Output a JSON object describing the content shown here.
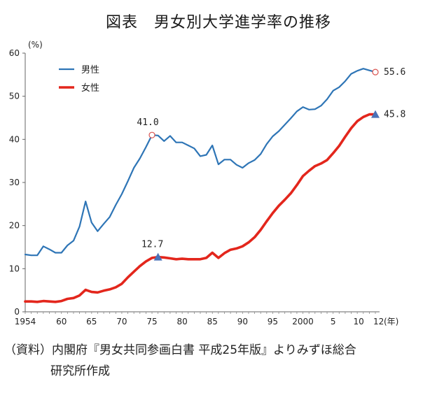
{
  "title": "図表　男女別大学進学率の推移",
  "source_line1": "（資料）内閣府『男女共同参画白書 平成25年版』よりみずほ総合",
  "source_line2": "研究所作成",
  "chart_data": {
    "type": "line",
    "ylabel": "(%)",
    "xunit": "(年)",
    "ylim": [
      0,
      60
    ],
    "yticks": [
      0,
      10,
      20,
      30,
      40,
      50,
      60
    ],
    "xlim": [
      1954,
      2012
    ],
    "xticks": [
      {
        "x": 1954,
        "label": "1954"
      },
      {
        "x": 1960,
        "label": "60"
      },
      {
        "x": 1965,
        "label": "65"
      },
      {
        "x": 1970,
        "label": "70"
      },
      {
        "x": 1975,
        "label": "75"
      },
      {
        "x": 1980,
        "label": "80"
      },
      {
        "x": 1985,
        "label": "85"
      },
      {
        "x": 1990,
        "label": "90"
      },
      {
        "x": 1995,
        "label": "95"
      },
      {
        "x": 2000,
        "label": "2000"
      },
      {
        "x": 2005,
        "label": "5"
      },
      {
        "x": 2010,
        "label": "10"
      },
      {
        "x": 2012,
        "label": "12"
      }
    ],
    "grid": false,
    "legend_position": "top-left",
    "series": [
      {
        "name": "男性",
        "color": "#2e75b6",
        "x": [
          1954,
          1955,
          1956,
          1957,
          1958,
          1959,
          1960,
          1961,
          1962,
          1963,
          1964,
          1965,
          1966,
          1967,
          1968,
          1969,
          1970,
          1971,
          1972,
          1973,
          1974,
          1975,
          1976,
          1977,
          1978,
          1979,
          1980,
          1981,
          1982,
          1983,
          1984,
          1985,
          1986,
          1987,
          1988,
          1989,
          1990,
          1991,
          1992,
          1993,
          1994,
          1995,
          1996,
          1997,
          1998,
          1999,
          2000,
          2001,
          2002,
          2003,
          2004,
          2005,
          2006,
          2007,
          2008,
          2009,
          2010,
          2011,
          2012
        ],
        "values": [
          13.3,
          13.1,
          13.1,
          15.2,
          14.5,
          13.7,
          13.7,
          15.4,
          16.5,
          19.8,
          25.6,
          20.7,
          18.7,
          20.4,
          22.0,
          24.8,
          27.3,
          30.3,
          33.4,
          35.6,
          38.2,
          41.0,
          40.9,
          39.6,
          40.8,
          39.3,
          39.3,
          38.6,
          37.9,
          36.1,
          36.4,
          38.6,
          34.2,
          35.3,
          35.3,
          34.1,
          33.4,
          34.5,
          35.2,
          36.6,
          38.9,
          40.7,
          41.9,
          43.4,
          44.9,
          46.5,
          47.5,
          46.9,
          47.0,
          47.8,
          49.3,
          51.3,
          52.1,
          53.5,
          55.2,
          55.9,
          56.4,
          56.0,
          55.6
        ],
        "endpoint_label": "55.6",
        "peak": {
          "x": 1975,
          "y": 41.0,
          "label": "41.0"
        }
      },
      {
        "name": "女性",
        "color": "#e3261c",
        "x": [
          1954,
          1955,
          1956,
          1957,
          1958,
          1959,
          1960,
          1961,
          1962,
          1963,
          1964,
          1965,
          1966,
          1967,
          1968,
          1969,
          1970,
          1971,
          1972,
          1973,
          1974,
          1975,
          1976,
          1977,
          1978,
          1979,
          1980,
          1981,
          1982,
          1983,
          1984,
          1985,
          1986,
          1987,
          1988,
          1989,
          1990,
          1991,
          1992,
          1993,
          1994,
          1995,
          1996,
          1997,
          1998,
          1999,
          2000,
          2001,
          2002,
          2003,
          2004,
          2005,
          2006,
          2007,
          2008,
          2009,
          2010,
          2011,
          2012
        ],
        "values": [
          2.4,
          2.4,
          2.3,
          2.5,
          2.4,
          2.3,
          2.5,
          3.0,
          3.2,
          3.8,
          5.1,
          4.6,
          4.5,
          4.9,
          5.2,
          5.7,
          6.5,
          8.0,
          9.3,
          10.6,
          11.7,
          12.5,
          12.7,
          12.6,
          12.4,
          12.2,
          12.3,
          12.2,
          12.2,
          12.2,
          12.5,
          13.7,
          12.5,
          13.6,
          14.4,
          14.7,
          15.2,
          16.1,
          17.3,
          19.0,
          21.0,
          22.9,
          24.6,
          26.0,
          27.5,
          29.4,
          31.5,
          32.7,
          33.8,
          34.4,
          35.2,
          36.8,
          38.5,
          40.6,
          42.6,
          44.2,
          45.2,
          45.8,
          45.8
        ],
        "endpoint_label": "45.8",
        "peak": {
          "x": 1976,
          "y": 12.7,
          "label": "12.7"
        }
      }
    ]
  }
}
